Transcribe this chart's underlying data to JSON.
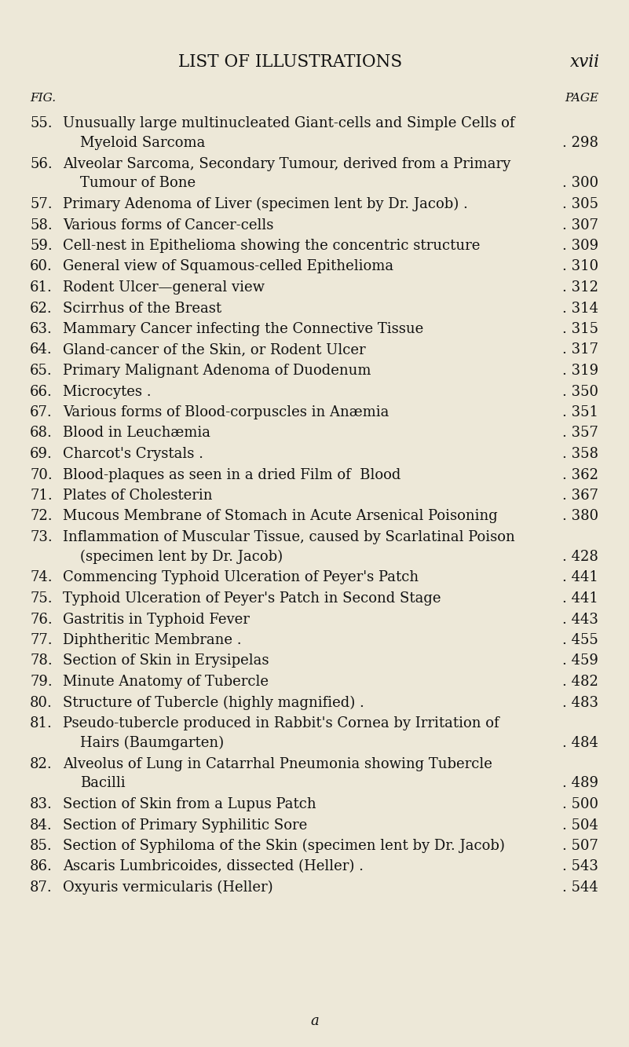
{
  "background_color": "#ede8d8",
  "title": "LIST OF ILLUSTRATIONS",
  "title_right": "xvii",
  "col_left_label": "FIG.",
  "col_right_label": "PAGE",
  "entries": [
    {
      "num": "55.",
      "line1": "Unusually large multinucleated Giant-cells and Simple Cells of",
      "line2": "Myeloid Sarcoma",
      "page": "298"
    },
    {
      "num": "56.",
      "line1": "Alveolar Sarcoma, Secondary Tumour, derived from a Primary",
      "line2": "Tumour of Bone",
      "page": "300"
    },
    {
      "num": "57.",
      "line1": "Primary Adenoma of Liver (specimen lent by Dr. Jacob) .",
      "line2": null,
      "page": "305"
    },
    {
      "num": "58.",
      "line1": "Various forms of Cancer-cells",
      "line2": null,
      "page": "307"
    },
    {
      "num": "59.",
      "line1": "Cell-nest in Epithelioma showing the concentric structure",
      "line2": null,
      "page": "309"
    },
    {
      "num": "60.",
      "line1": "General view of Squamous-celled Epithelioma",
      "line2": null,
      "page": "310"
    },
    {
      "num": "61.",
      "line1": "Rodent Ulcer—general view",
      "line2": null,
      "page": "312"
    },
    {
      "num": "62.",
      "line1": "Scirrhus of the Breast",
      "line2": null,
      "page": "314"
    },
    {
      "num": "63.",
      "line1": "Mammary Cancer infecting the Connective Tissue",
      "line2": null,
      "page": "315"
    },
    {
      "num": "64.",
      "line1": "Gland-cancer of the Skin, or Rodent Ulcer",
      "line2": null,
      "page": "317"
    },
    {
      "num": "65.",
      "line1": "Primary Malignant Adenoma of Duodenum",
      "line2": null,
      "page": "319"
    },
    {
      "num": "66.",
      "line1": "Microcytes .",
      "line2": null,
      "page": "350"
    },
    {
      "num": "67.",
      "line1": "Various forms of Blood-corpuscles in Anæmia",
      "line2": null,
      "page": "351"
    },
    {
      "num": "68.",
      "line1": "Blood in Leuchæmia",
      "line2": null,
      "page": "357"
    },
    {
      "num": "69.",
      "line1": "Charcot's Crystals .",
      "line2": null,
      "page": "358"
    },
    {
      "num": "70.",
      "line1": "Blood-plaques as seen in a dried Film of  Blood",
      "line2": null,
      "page": "362"
    },
    {
      "num": "71.",
      "line1": "Plates of Cholesterin",
      "line2": null,
      "page": "367"
    },
    {
      "num": "72.",
      "line1": "Mucous Membrane of Stomach in Acute Arsenical Poisoning",
      "line2": null,
      "page": "380"
    },
    {
      "num": "73.",
      "line1": "Inflammation of Muscular Tissue, caused by Scarlatinal Poison",
      "line2": "(specimen lent by Dr. Jacob)",
      "page": "428"
    },
    {
      "num": "74.",
      "line1": "Commencing Typhoid Ulceration of Peyer's Patch",
      "line2": null,
      "page": "441"
    },
    {
      "num": "75.",
      "line1": "Typhoid Ulceration of Peyer's Patch in Second Stage",
      "line2": null,
      "page": "441"
    },
    {
      "num": "76.",
      "line1": "Gastritis in Typhoid Fever",
      "line2": null,
      "page": "443"
    },
    {
      "num": "77.",
      "line1": "Diphtheritic Membrane .",
      "line2": null,
      "page": "455"
    },
    {
      "num": "78.",
      "line1": "Section of Skin in Erysipelas",
      "line2": null,
      "page": "459"
    },
    {
      "num": "79.",
      "line1": "Minute Anatomy of Tubercle",
      "line2": null,
      "page": "482"
    },
    {
      "num": "80.",
      "line1": "Structure of Tubercle (highly magnified) .",
      "line2": null,
      "page": "483"
    },
    {
      "num": "81.",
      "line1": "Pseudo-tubercle produced in Rabbit's Cornea by Irritation of",
      "line2": "Hairs (Baumgarten)",
      "page": "484"
    },
    {
      "num": "82.",
      "line1": "Alveolus of Lung in Catarrhal Pneumonia showing Tubercle",
      "line2": "Bacilli",
      "page": "489"
    },
    {
      "num": "83.",
      "line1": "Section of Skin from a Lupus Patch",
      "line2": null,
      "page": "500"
    },
    {
      "num": "84.",
      "line1": "Section of Primary Syphilitic Sore",
      "line2": null,
      "page": "504"
    },
    {
      "num": "85.",
      "line1": "Section of Syphiloma of the Skin (specimen lent by Dr. Jacob)",
      "line2": null,
      "page": "507"
    },
    {
      "num": "86.",
      "line1": "Ascaris Lumbricoides, dissected (Heller) .",
      "line2": null,
      "page": "543"
    },
    {
      "num": "87.",
      "line1": "Oxyuris vermicularis (Heller)",
      "line2": null,
      "page": "544"
    }
  ],
  "footer": "a",
  "text_color": "#111111",
  "font_size": 13.0,
  "title_font_size": 15.5,
  "header_label_size": 11.0
}
